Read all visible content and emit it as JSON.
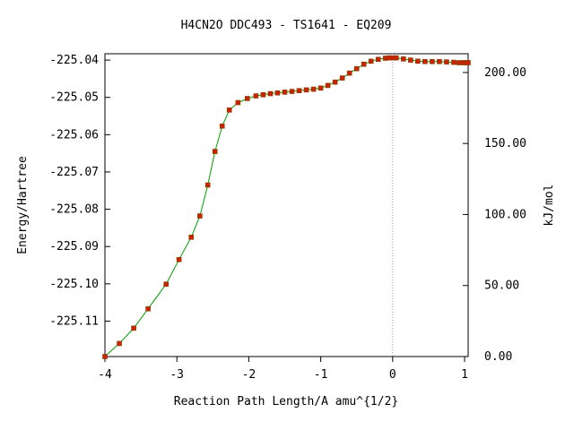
{
  "chart_data": {
    "type": "line",
    "title": "H4CN2O   DDC493 - TS1641 - EQ209",
    "xlabel": "Reaction Path Length/A amu^{1/2}",
    "ylabel": "Energy/Hartree",
    "y2label": "kJ/mol",
    "xlim": [
      -4.0,
      1.05
    ],
    "ylim": [
      -225.1195,
      -225.0383
    ],
    "x_ticks": [
      -4,
      -3,
      -2,
      -1,
      0,
      1
    ],
    "x_tick_labels": [
      "-4",
      "-3",
      "-2",
      "-1",
      "0",
      "1"
    ],
    "y_ticks": [
      -225.04,
      -225.05,
      -225.06,
      -225.07,
      -225.08,
      -225.09,
      -225.1,
      -225.11
    ],
    "y_tick_labels": [
      "-225.04",
      "-225.05",
      "-225.06",
      "-225.07",
      "-225.08",
      "-225.09",
      "-225.10",
      "-225.11"
    ],
    "y2_ticks": [
      0,
      50,
      100,
      150,
      200
    ],
    "y2_tick_labels": [
      "0.00",
      "50.00",
      "100.00",
      "150.00",
      "200.00"
    ],
    "y2_zero_energy": -225.1195,
    "y2_unit_per_hartree": 2625.5,
    "ts_marker_x": 0,
    "grid": false,
    "colors": {
      "line": "#00a000",
      "marker": "#cc2200",
      "marker_edge": "#804000",
      "ts_line": "#a0a0a0"
    },
    "series": [
      {
        "x": [
          -4.0,
          -3.8,
          -3.6,
          -3.4,
          -3.15,
          -2.97,
          -2.8,
          -2.68,
          -2.57,
          -2.47,
          -2.37,
          -2.27,
          -2.15,
          -2.02,
          -1.9,
          -1.8,
          -1.7,
          -1.6,
          -1.5,
          -1.4,
          -1.3,
          -1.2,
          -1.1,
          -1.0,
          -0.9,
          -0.8,
          -0.7,
          -0.6,
          -0.5,
          -0.4,
          -0.3,
          -0.2,
          -0.1,
          -0.05,
          0.0,
          0.05,
          0.15,
          0.25,
          0.35,
          0.45,
          0.55,
          0.65,
          0.75,
          0.85,
          0.92,
          0.97,
          1.0,
          1.03,
          1.05
        ],
        "y": [
          -225.1195,
          -225.116,
          -225.1119,
          -225.1067,
          -225.1001,
          -225.0935,
          -225.0875,
          -225.0818,
          -225.0735,
          -225.0645,
          -225.0577,
          -225.0534,
          -225.0514,
          -225.0503,
          -225.0496,
          -225.0493,
          -225.049,
          -225.0488,
          -225.0486,
          -225.0484,
          -225.0482,
          -225.048,
          -225.0478,
          -225.0475,
          -225.0468,
          -225.0459,
          -225.0448,
          -225.0435,
          -225.0423,
          -225.0411,
          -225.0403,
          -225.0398,
          -225.0395,
          -225.0394,
          -225.0394,
          -225.0394,
          -225.0397,
          -225.04,
          -225.0403,
          -225.0404,
          -225.0404,
          -225.0404,
          -225.0405,
          -225.0406,
          -225.0407,
          -225.0407,
          -225.0407,
          -225.0407,
          -225.0407
        ]
      }
    ]
  }
}
